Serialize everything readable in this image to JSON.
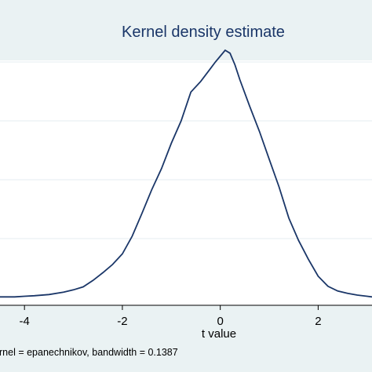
{
  "chart_data": {
    "type": "line",
    "title": "Kernel density estimate",
    "xlabel": "t value",
    "ylabel": "",
    "note": "rnel = epanechnikov, bandwidth = 0.1387",
    "x_ticks": [
      -4,
      -2,
      0,
      2
    ],
    "xlim": [
      -4.5,
      3.1
    ],
    "ylim": [
      0,
      0.42
    ],
    "grid": true,
    "series": [
      {
        "values_x": [
          -4.5,
          -4.2,
          -4.0,
          -3.8,
          -3.5,
          -3.2,
          -3.0,
          -2.8,
          -2.6,
          -2.4,
          -2.2,
          -2.0,
          -1.8,
          -1.6,
          -1.4,
          -1.2,
          -1.0,
          -0.8,
          -0.6,
          -0.4,
          -0.2,
          -0.1,
          0.0,
          0.1,
          0.2,
          0.3,
          0.4,
          0.6,
          0.8,
          1.0,
          1.2,
          1.4,
          1.6,
          1.8,
          2.0,
          2.2,
          2.4,
          2.6,
          2.8,
          3.0,
          3.1
        ],
        "values_y": [
          0.001,
          0.001,
          0.002,
          0.003,
          0.005,
          0.009,
          0.013,
          0.018,
          0.029,
          0.042,
          0.056,
          0.074,
          0.104,
          0.143,
          0.183,
          0.219,
          0.262,
          0.3,
          0.349,
          0.367,
          0.389,
          0.4,
          0.41,
          0.42,
          0.415,
          0.395,
          0.37,
          0.325,
          0.282,
          0.235,
          0.188,
          0.135,
          0.097,
          0.065,
          0.036,
          0.019,
          0.011,
          0.007,
          0.004,
          0.002,
          0.001
        ]
      }
    ]
  }
}
